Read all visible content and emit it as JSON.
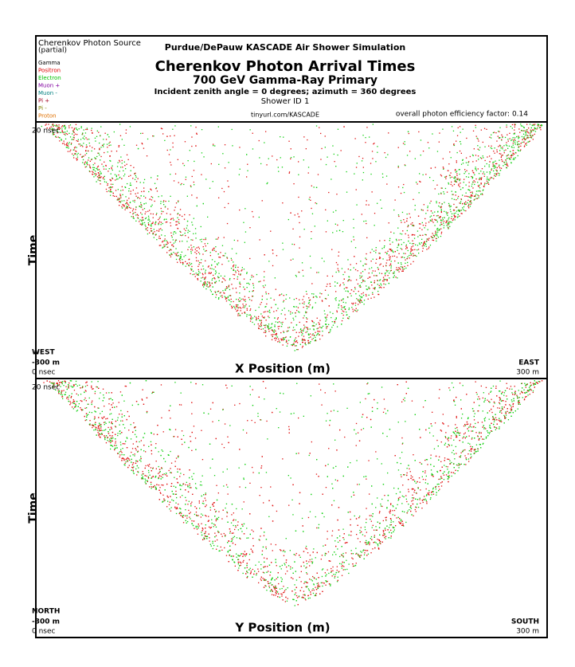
{
  "header": {
    "source_title": "Cherenkov Photon Source",
    "source_note": "(partial)",
    "legend": [
      {
        "label": "Gamma",
        "color": "#000000"
      },
      {
        "label": "Positron",
        "color": "#e00000"
      },
      {
        "label": "Electron",
        "color": "#00c000"
      },
      {
        "label": "Muon +",
        "color": "#8000a0"
      },
      {
        "label": "Muon -",
        "color": "#008080"
      },
      {
        "label": "Pi +",
        "color": "#a00020"
      },
      {
        "label": "Pi -",
        "color": "#808000"
      },
      {
        "label": "Proton",
        "color": "#e07000"
      }
    ],
    "org": "Purdue/DePauw KASCADE Air Shower Simulation",
    "title": "Cherenkov Photon Arrival Times",
    "subtitle": "700 GeV Gamma-Ray Primary",
    "incident": "Incident zenith angle =  0 degrees;  azimuth =  360 degrees",
    "shower_id": "Shower ID 1",
    "url": "tinyurl.com/KASCADE",
    "efficiency": "overall photon efficiency factor: 0.14"
  },
  "panels": [
    {
      "time_max": "20 nsec",
      "y_label": "Time",
      "left_dir": "WEST",
      "left_pos": "-300 m",
      "time_min": "0 nsec",
      "x_label": "X Position (m)",
      "right_dir": "EAST",
      "right_pos": "300 m"
    },
    {
      "time_max": "20 nsec",
      "y_label": "Time",
      "left_dir": "NORTH",
      "left_pos": "-300 m",
      "time_min": "0 nsec",
      "x_label": "Y Position (m)",
      "right_dir": "SOUTH",
      "right_pos": "300 m"
    }
  ]
}
